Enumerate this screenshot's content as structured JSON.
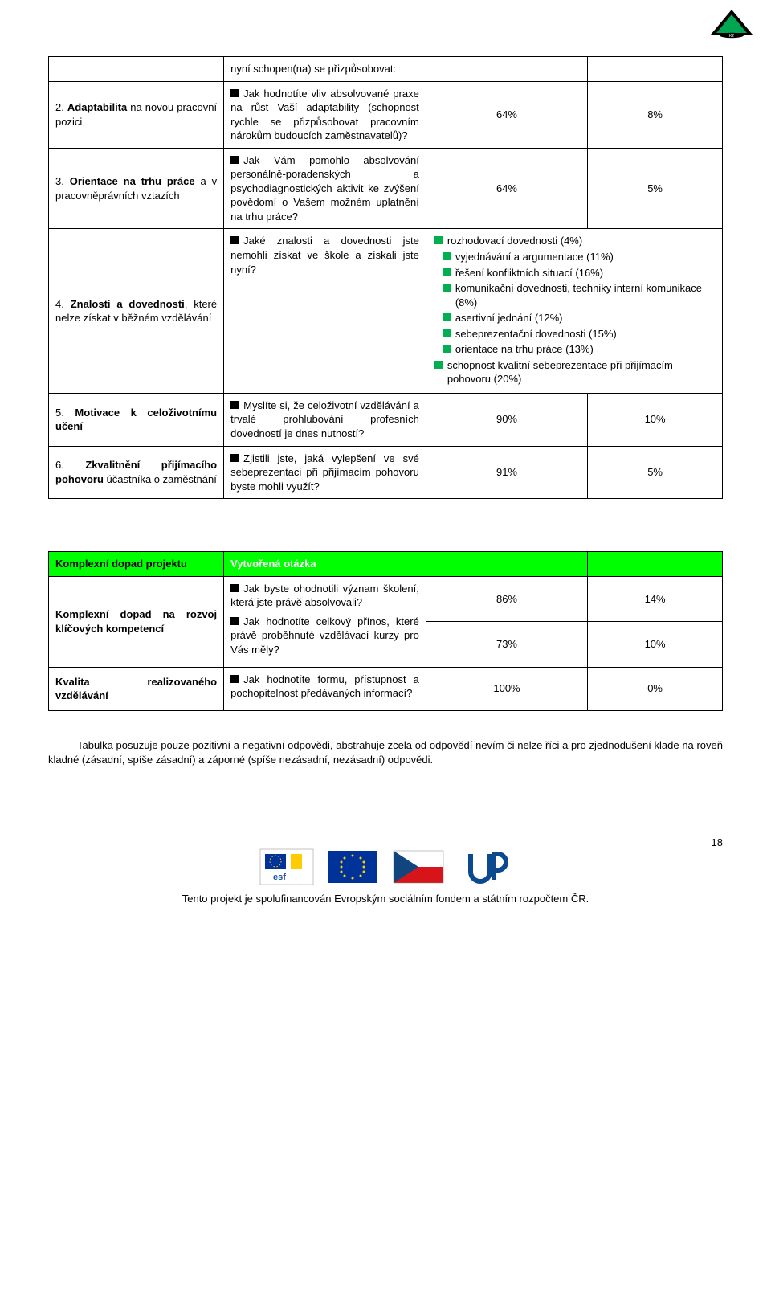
{
  "colors": {
    "header_bg": "#00ff00",
    "header_accent_text": "#ffffff",
    "bullet_black": "#000000",
    "bullet_green": "#00b050",
    "border": "#000000",
    "body_text": "#000000",
    "background": "#ffffff"
  },
  "intro_line": "nyní schopen(na) se přizpůsobovat:",
  "table1_rows": [
    {
      "label_html": "2. <b>Adaptabilita</b> na novou pracovní pozici",
      "question": "Jak hodnotíte vliv absolvované praxe na růst Vaší adaptability (schopnost rychle se přizpůsobovat pracovním nárokům budoucích zaměstnavatelů)?",
      "col2": "64%",
      "col3": "8%"
    },
    {
      "label_html": "3. <b>Orientace na trhu práce</b> a v pracovněprávních vztazích",
      "question": "Jak Vám pomohlo absolvování personálně-poradenských a psychodiagnostických aktivit ke zvýšení povědomí o Vašem možném uplatnění na trhu práce?",
      "col2": "64%",
      "col3": "5%"
    },
    {
      "label_html": "4. <b>Znalosti a dovednosti</b>, které nelze získat v běžném vzdělávání",
      "question": "Jaké znalosti a dovednosti jste nemohli získat ve škole a získali jste nyní?",
      "list": [
        "rozhodovací dovednosti (4%)",
        "vyjednávání a argumentace (11%)",
        "řešení konfliktních situací (16%)",
        "komunikační dovednosti, techniky interní komunikace (8%)",
        "asertivní jednání (12%)",
        "sebeprezentační dovednosti (15%)",
        "orientace na trhu práce (13%)",
        "schopnost kvalitní sebeprezentace při přijímacím pohovoru (20%)"
      ]
    },
    {
      "label_html": "5. <b>Motivace k celoživotnímu učení</b>",
      "question": "Myslíte si, že celoživotní vzdělávání a trvalé prohlubování profesních dovedností je dnes nutností?",
      "col2": "90%",
      "col3": "10%"
    },
    {
      "label_html": "6. <b>Zkvalitnění přijímacího pohovoru</b> účastníka o zaměstnání",
      "question": "Zjistili jste, jaká vylepšení ve své sebeprezentaci při přijímacím pohovoru byste mohli využít?",
      "col2": "91%",
      "col3": "5%"
    }
  ],
  "table2_header": {
    "left": "Komplexní dopad projektu",
    "right": "Vytvořená otázka"
  },
  "table2_rows": [
    {
      "label_html": "<b>Komplexní dopad na rozvoj klíčových kompetencí</b>",
      "questions": [
        {
          "q": "Jak byste ohodnotili význam školení, která jste právě absolvovali?",
          "c2": "86%",
          "c3": "14%"
        },
        {
          "q": "Jak hodnotíte celkový přínos, které právě proběhnuté vzdělávací kurzy pro Vás měly?",
          "c2": "73%",
          "c3": "10%"
        }
      ]
    },
    {
      "label_html": "<b>Kvalita realizovaného vzdělávání</b>",
      "questions": [
        {
          "q": "Jak hodnotíte formu, přístupnost a pochopitelnost předávaných informací?",
          "c2": "100%",
          "c3": "0%"
        }
      ]
    }
  ],
  "bottom_paragraph": "Tabulka posuzuje pouze pozitivní a negativní odpovědi, abstrahuje zcela od odpovědí nevím či nelze říci a pro zjednodušení klade na roveň kladné (zásadní, spíše zásadní) a záporné (spíše nezásadní, nezásadní) odpovědi.",
  "page_number": "18",
  "footer_text": "Tento projekt je spolufinancován Evropským sociálním fondem a státním rozpočtem ČR.",
  "footer_logos": [
    "esf",
    "EU flag",
    "CZ flag",
    "UP"
  ]
}
